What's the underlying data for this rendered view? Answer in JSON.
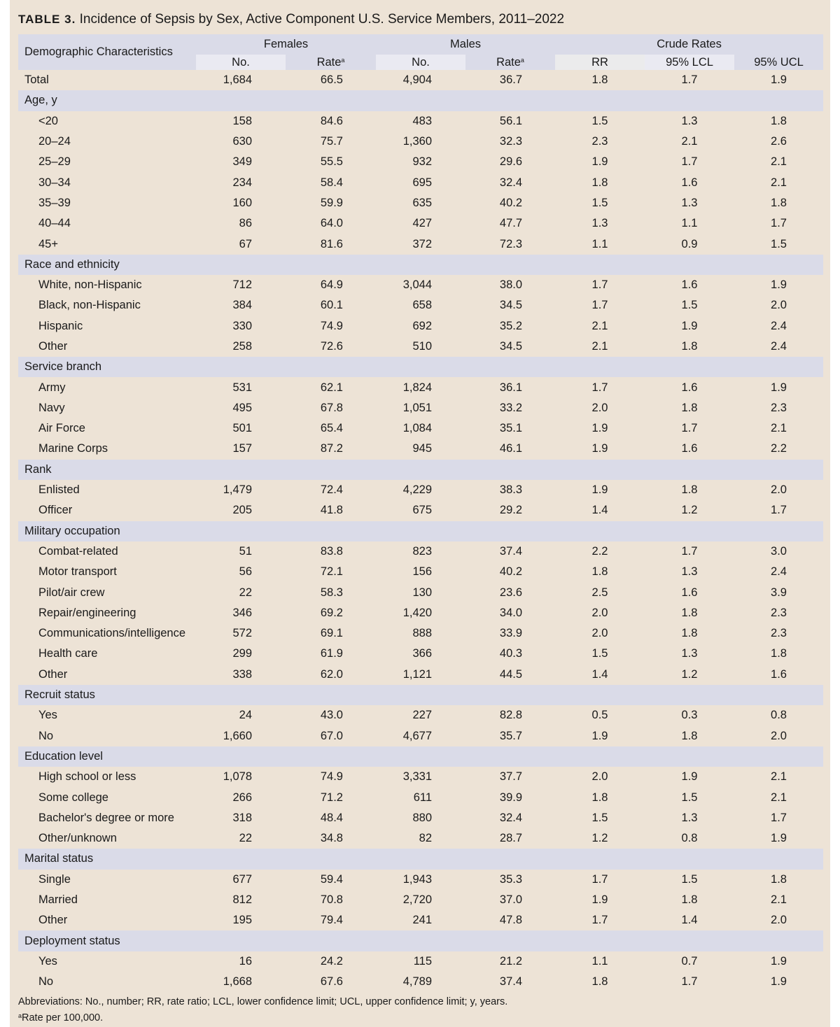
{
  "title": {
    "label": "TABLE 3.",
    "text": "Incidence of Sepsis by Sex, Active Component U.S. Service Members, 2011–2022"
  },
  "header": {
    "demographic": "Demographic Characteristics",
    "females": "Females",
    "males": "Males",
    "crude_rates": "Crude Rates",
    "no": "No.",
    "rate": "Rate",
    "rate_sup": "a",
    "rr": "RR",
    "lcl": "95% LCL",
    "ucl": "95% UCL"
  },
  "rows": [
    {
      "type": "top",
      "label": "Total",
      "f_no": "1,684",
      "f_rate": "66.5",
      "m_no": "4,904",
      "m_rate": "36.7",
      "rr": "1.8",
      "lcl": "1.7",
      "ucl": "1.9"
    },
    {
      "type": "section",
      "label": "Age, y"
    },
    {
      "type": "sub",
      "label": "<20",
      "f_no": "158",
      "f_rate": "84.6",
      "m_no": "483",
      "m_rate": "56.1",
      "rr": "1.5",
      "lcl": "1.3",
      "ucl": "1.8"
    },
    {
      "type": "sub",
      "label": "20–24",
      "f_no": "630",
      "f_rate": "75.7",
      "m_no": "1,360",
      "m_rate": "32.3",
      "rr": "2.3",
      "lcl": "2.1",
      "ucl": "2.6"
    },
    {
      "type": "sub",
      "label": "25–29",
      "f_no": "349",
      "f_rate": "55.5",
      "m_no": "932",
      "m_rate": "29.6",
      "rr": "1.9",
      "lcl": "1.7",
      "ucl": "2.1"
    },
    {
      "type": "sub",
      "label": "30–34",
      "f_no": "234",
      "f_rate": "58.4",
      "m_no": "695",
      "m_rate": "32.4",
      "rr": "1.8",
      "lcl": "1.6",
      "ucl": "2.1"
    },
    {
      "type": "sub",
      "label": "35–39",
      "f_no": "160",
      "f_rate": "59.9",
      "m_no": "635",
      "m_rate": "40.2",
      "rr": "1.5",
      "lcl": "1.3",
      "ucl": "1.8"
    },
    {
      "type": "sub",
      "label": "40–44",
      "f_no": "86",
      "f_rate": "64.0",
      "m_no": "427",
      "m_rate": "47.7",
      "rr": "1.3",
      "lcl": "1.1",
      "ucl": "1.7"
    },
    {
      "type": "sub",
      "label": "45+",
      "f_no": "67",
      "f_rate": "81.6",
      "m_no": "372",
      "m_rate": "72.3",
      "rr": "1.1",
      "lcl": "0.9",
      "ucl": "1.5"
    },
    {
      "type": "section",
      "label": "Race and ethnicity"
    },
    {
      "type": "sub",
      "label": "White, non-Hispanic",
      "f_no": "712",
      "f_rate": "64.9",
      "m_no": "3,044",
      "m_rate": "38.0",
      "rr": "1.7",
      "lcl": "1.6",
      "ucl": "1.9"
    },
    {
      "type": "sub",
      "label": "Black, non-Hispanic",
      "f_no": "384",
      "f_rate": "60.1",
      "m_no": "658",
      "m_rate": "34.5",
      "rr": "1.7",
      "lcl": "1.5",
      "ucl": "2.0"
    },
    {
      "type": "sub",
      "label": "Hispanic",
      "f_no": "330",
      "f_rate": "74.9",
      "m_no": "692",
      "m_rate": "35.2",
      "rr": "2.1",
      "lcl": "1.9",
      "ucl": "2.4"
    },
    {
      "type": "sub",
      "label": "Other",
      "f_no": "258",
      "f_rate": "72.6",
      "m_no": "510",
      "m_rate": "34.5",
      "rr": "2.1",
      "lcl": "1.8",
      "ucl": "2.4"
    },
    {
      "type": "section",
      "label": "Service branch"
    },
    {
      "type": "sub",
      "label": "Army",
      "f_no": "531",
      "f_rate": "62.1",
      "m_no": "1,824",
      "m_rate": "36.1",
      "rr": "1.7",
      "lcl": "1.6",
      "ucl": "1.9"
    },
    {
      "type": "sub",
      "label": "Navy",
      "f_no": "495",
      "f_rate": "67.8",
      "m_no": "1,051",
      "m_rate": "33.2",
      "rr": "2.0",
      "lcl": "1.8",
      "ucl": "2.3"
    },
    {
      "type": "sub",
      "label": "Air Force",
      "f_no": "501",
      "f_rate": "65.4",
      "m_no": "1,084",
      "m_rate": "35.1",
      "rr": "1.9",
      "lcl": "1.7",
      "ucl": "2.1"
    },
    {
      "type": "sub",
      "label": "Marine Corps",
      "f_no": "157",
      "f_rate": "87.2",
      "m_no": "945",
      "m_rate": "46.1",
      "rr": "1.9",
      "lcl": "1.6",
      "ucl": "2.2"
    },
    {
      "type": "section",
      "label": "Rank"
    },
    {
      "type": "sub",
      "label": "Enlisted",
      "f_no": "1,479",
      "f_rate": "72.4",
      "m_no": "4,229",
      "m_rate": "38.3",
      "rr": "1.9",
      "lcl": "1.8",
      "ucl": "2.0"
    },
    {
      "type": "sub",
      "label": "Officer",
      "f_no": "205",
      "f_rate": "41.8",
      "m_no": "675",
      "m_rate": "29.2",
      "rr": "1.4",
      "lcl": "1.2",
      "ucl": "1.7"
    },
    {
      "type": "section",
      "label": "Military occupation"
    },
    {
      "type": "sub",
      "label": "Combat-related",
      "f_no": "51",
      "f_rate": "83.8",
      "m_no": "823",
      "m_rate": "37.4",
      "rr": "2.2",
      "lcl": "1.7",
      "ucl": "3.0"
    },
    {
      "type": "sub",
      "label": "Motor transport",
      "f_no": "56",
      "f_rate": "72.1",
      "m_no": "156",
      "m_rate": "40.2",
      "rr": "1.8",
      "lcl": "1.3",
      "ucl": "2.4"
    },
    {
      "type": "sub",
      "label": "Pilot/air crew",
      "f_no": "22",
      "f_rate": "58.3",
      "m_no": "130",
      "m_rate": "23.6",
      "rr": "2.5",
      "lcl": "1.6",
      "ucl": "3.9"
    },
    {
      "type": "sub",
      "label": "Repair/engineering",
      "f_no": "346",
      "f_rate": "69.2",
      "m_no": "1,420",
      "m_rate": "34.0",
      "rr": "2.0",
      "lcl": "1.8",
      "ucl": "2.3"
    },
    {
      "type": "sub",
      "label": "Communications/intelligence",
      "f_no": "572",
      "f_rate": "69.1",
      "m_no": "888",
      "m_rate": "33.9",
      "rr": "2.0",
      "lcl": "1.8",
      "ucl": "2.3"
    },
    {
      "type": "sub",
      "label": "Health care",
      "f_no": "299",
      "f_rate": "61.9",
      "m_no": "366",
      "m_rate": "40.3",
      "rr": "1.5",
      "lcl": "1.3",
      "ucl": "1.8"
    },
    {
      "type": "sub",
      "label": "Other",
      "f_no": "338",
      "f_rate": "62.0",
      "m_no": "1,121",
      "m_rate": "44.5",
      "rr": "1.4",
      "lcl": "1.2",
      "ucl": "1.6"
    },
    {
      "type": "section",
      "label": "Recruit status"
    },
    {
      "type": "sub",
      "label": "Yes",
      "f_no": "24",
      "f_rate": "43.0",
      "m_no": "227",
      "m_rate": "82.8",
      "rr": "0.5",
      "lcl": "0.3",
      "ucl": "0.8"
    },
    {
      "type": "sub",
      "label": "No",
      "f_no": "1,660",
      "f_rate": "67.0",
      "m_no": "4,677",
      "m_rate": "35.7",
      "rr": "1.9",
      "lcl": "1.8",
      "ucl": "2.0"
    },
    {
      "type": "section",
      "label": "Education level"
    },
    {
      "type": "sub",
      "label": "High school or less",
      "f_no": "1,078",
      "f_rate": "74.9",
      "m_no": "3,331",
      "m_rate": "37.7",
      "rr": "2.0",
      "lcl": "1.9",
      "ucl": "2.1"
    },
    {
      "type": "sub",
      "label": "Some college",
      "f_no": "266",
      "f_rate": "71.2",
      "m_no": "611",
      "m_rate": "39.9",
      "rr": "1.8",
      "lcl": "1.5",
      "ucl": "2.1"
    },
    {
      "type": "sub",
      "label": "Bachelor's degree or more",
      "f_no": "318",
      "f_rate": "48.4",
      "m_no": "880",
      "m_rate": "32.4",
      "rr": "1.5",
      "lcl": "1.3",
      "ucl": "1.7"
    },
    {
      "type": "sub",
      "label": "Other/unknown",
      "f_no": "22",
      "f_rate": "34.8",
      "m_no": "82",
      "m_rate": "28.7",
      "rr": "1.2",
      "lcl": "0.8",
      "ucl": "1.9"
    },
    {
      "type": "section",
      "label": "Marital status"
    },
    {
      "type": "sub",
      "label": "Single",
      "f_no": "677",
      "f_rate": "59.4",
      "m_no": "1,943",
      "m_rate": "35.3",
      "rr": "1.7",
      "lcl": "1.5",
      "ucl": "1.8"
    },
    {
      "type": "sub",
      "label": "Married",
      "f_no": "812",
      "f_rate": "70.8",
      "m_no": "2,720",
      "m_rate": "37.0",
      "rr": "1.9",
      "lcl": "1.8",
      "ucl": "2.1"
    },
    {
      "type": "sub",
      "label": "Other",
      "f_no": "195",
      "f_rate": "79.4",
      "m_no": "241",
      "m_rate": "47.8",
      "rr": "1.7",
      "lcl": "1.4",
      "ucl": "2.0"
    },
    {
      "type": "section",
      "label": "Deployment status"
    },
    {
      "type": "sub",
      "label": "Yes",
      "f_no": "16",
      "f_rate": "24.2",
      "m_no": "115",
      "m_rate": "21.2",
      "rr": "1.1",
      "lcl": "0.7",
      "ucl": "1.9"
    },
    {
      "type": "sub",
      "label": "No",
      "f_no": "1,668",
      "f_rate": "67.6",
      "m_no": "4,789",
      "m_rate": "37.4",
      "rr": "1.8",
      "lcl": "1.7",
      "ucl": "1.9"
    }
  ],
  "footnotes": {
    "abbreviations": "Abbreviations: No., number; RR, rate ratio; LCL, lower confidence limit; UCL, upper confidence limit; y, years.",
    "rate_marker": "a",
    "rate_note": "Rate per 100,000."
  }
}
